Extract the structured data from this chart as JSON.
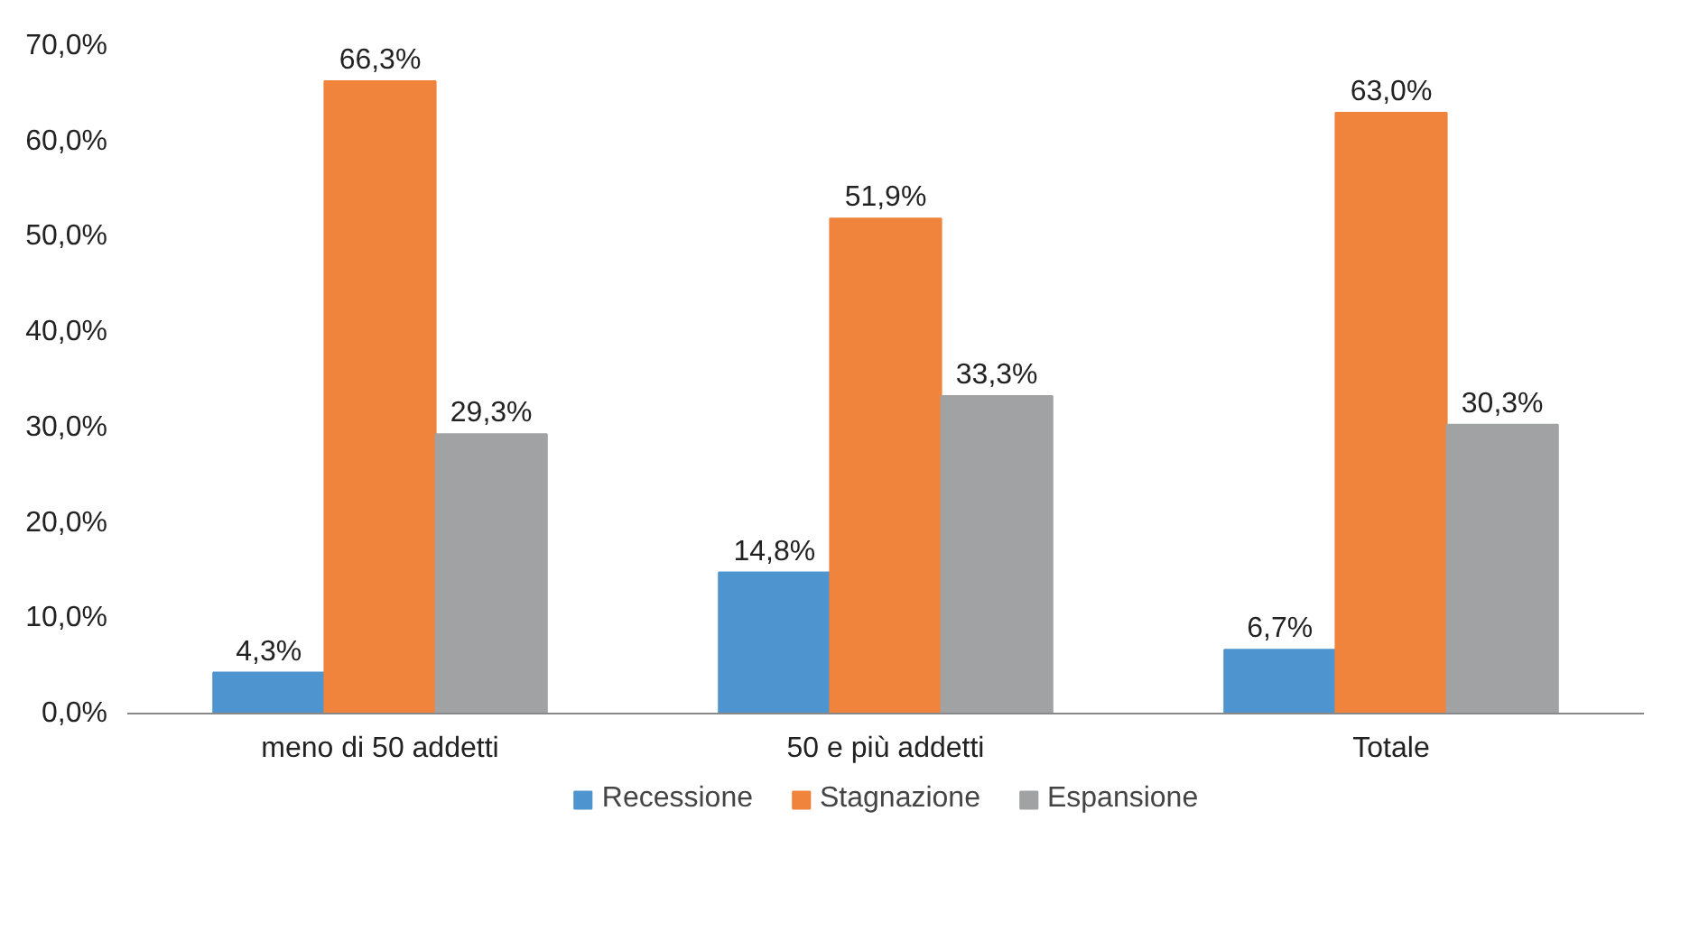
{
  "chart_data": {
    "type": "bar",
    "categories": [
      "meno di 50 addetti",
      "50 e più addetti",
      "Totale"
    ],
    "series": [
      {
        "name": "Recessione",
        "color": "#4e95d0",
        "values": [
          4.3,
          14.8,
          6.7
        ],
        "value_labels": [
          "4,3%",
          "14,8%",
          "6,7%"
        ]
      },
      {
        "name": "Stagnazione",
        "color": "#f0843c",
        "values": [
          66.3,
          51.9,
          63.0
        ],
        "value_labels": [
          "66,3%",
          "51,9%",
          "63,0%"
        ]
      },
      {
        "name": "Espansione",
        "color": "#a0a2a4",
        "values": [
          29.3,
          33.3,
          30.3
        ],
        "value_labels": [
          "29,3%",
          "33,3%",
          "30,3%"
        ]
      }
    ],
    "ylim": [
      0,
      70
    ],
    "yticks": [
      {
        "value": 0,
        "label": "0,0%"
      },
      {
        "value": 10,
        "label": "10,0%"
      },
      {
        "value": 20,
        "label": "20,0%"
      },
      {
        "value": 30,
        "label": "30,0%"
      },
      {
        "value": 40,
        "label": "40,0%"
      },
      {
        "value": 50,
        "label": "50,0%"
      },
      {
        "value": 60,
        "label": "60,0%"
      },
      {
        "value": 70,
        "label": "70,0%"
      }
    ],
    "grid": false,
    "legend": "bottom"
  }
}
